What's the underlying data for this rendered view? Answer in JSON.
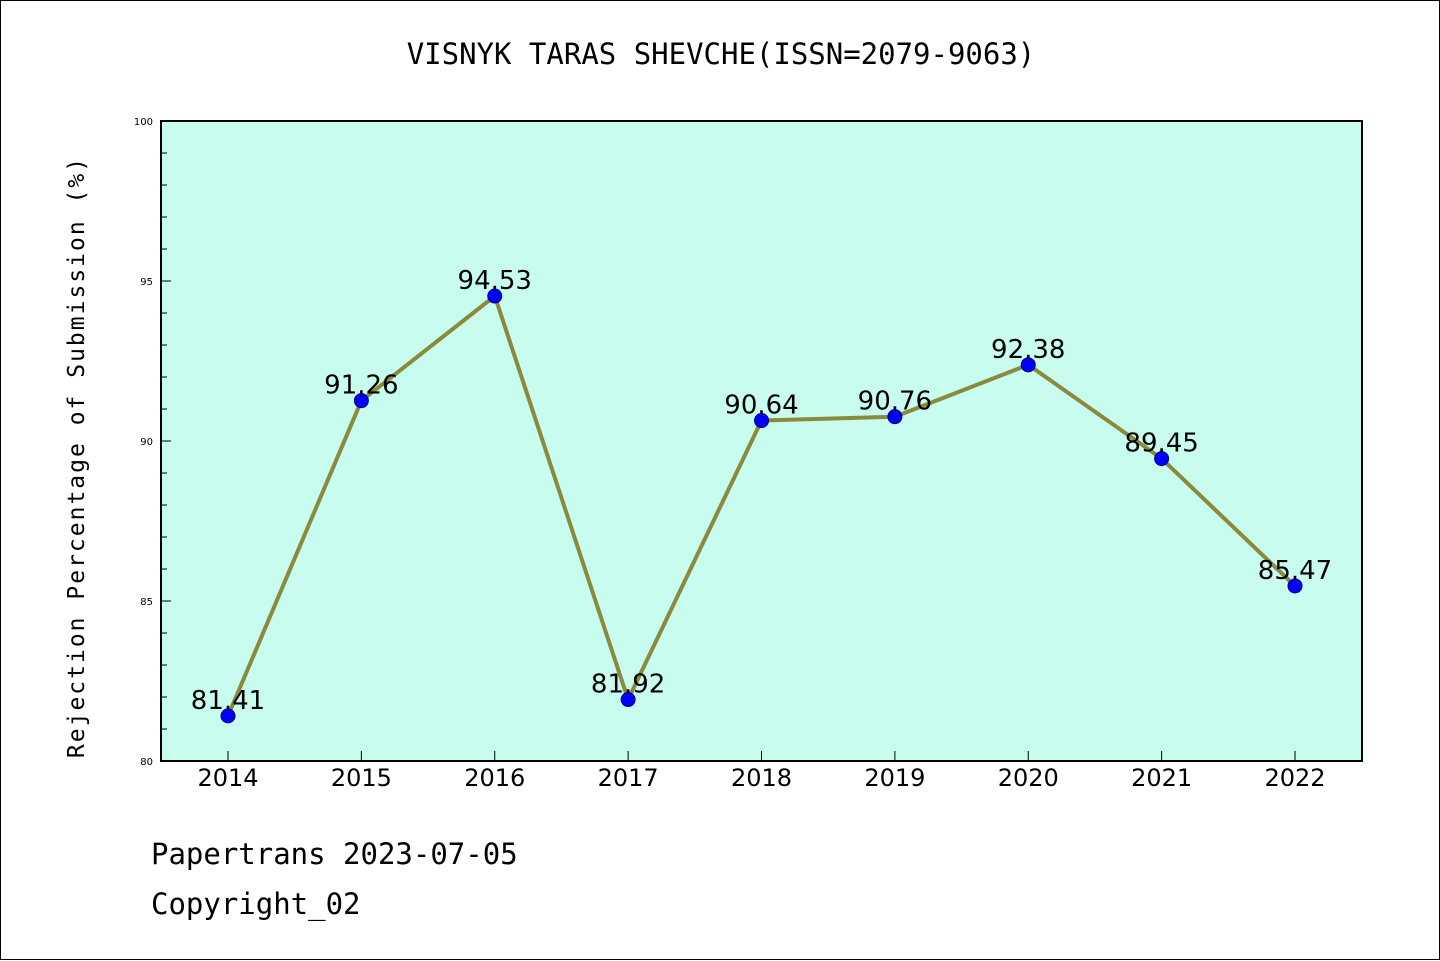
{
  "footer": {
    "source": "Papertrans 2023-07-05",
    "copyright": "Copyright_02"
  },
  "chart_data": {
    "type": "line",
    "title": "VISNYK TARAS SHEVCHE(ISSN=2079-9063)",
    "xlabel": "",
    "ylabel": "Rejection Percentage of Submission (%)",
    "categories": [
      "2014",
      "2015",
      "2016",
      "2017",
      "2018",
      "2019",
      "2020",
      "2021",
      "2022"
    ],
    "series": [
      {
        "values": [
          81.41,
          91.26,
          94.53,
          81.92,
          90.64,
          90.76,
          92.38,
          89.45,
          85.47
        ],
        "data_labels": [
          "81.41",
          "91.26",
          "94.53",
          "81.92",
          "90.64",
          "90.76",
          "92.38",
          "89.45",
          "85.47"
        ]
      }
    ],
    "ylim": [
      80,
      100
    ],
    "yticks": [
      80,
      85,
      90,
      95,
      100
    ],
    "grid": false,
    "colors": {
      "plot_background": "#c8fcee",
      "line": "#8b8a3c",
      "marker": "#0000ff"
    }
  }
}
